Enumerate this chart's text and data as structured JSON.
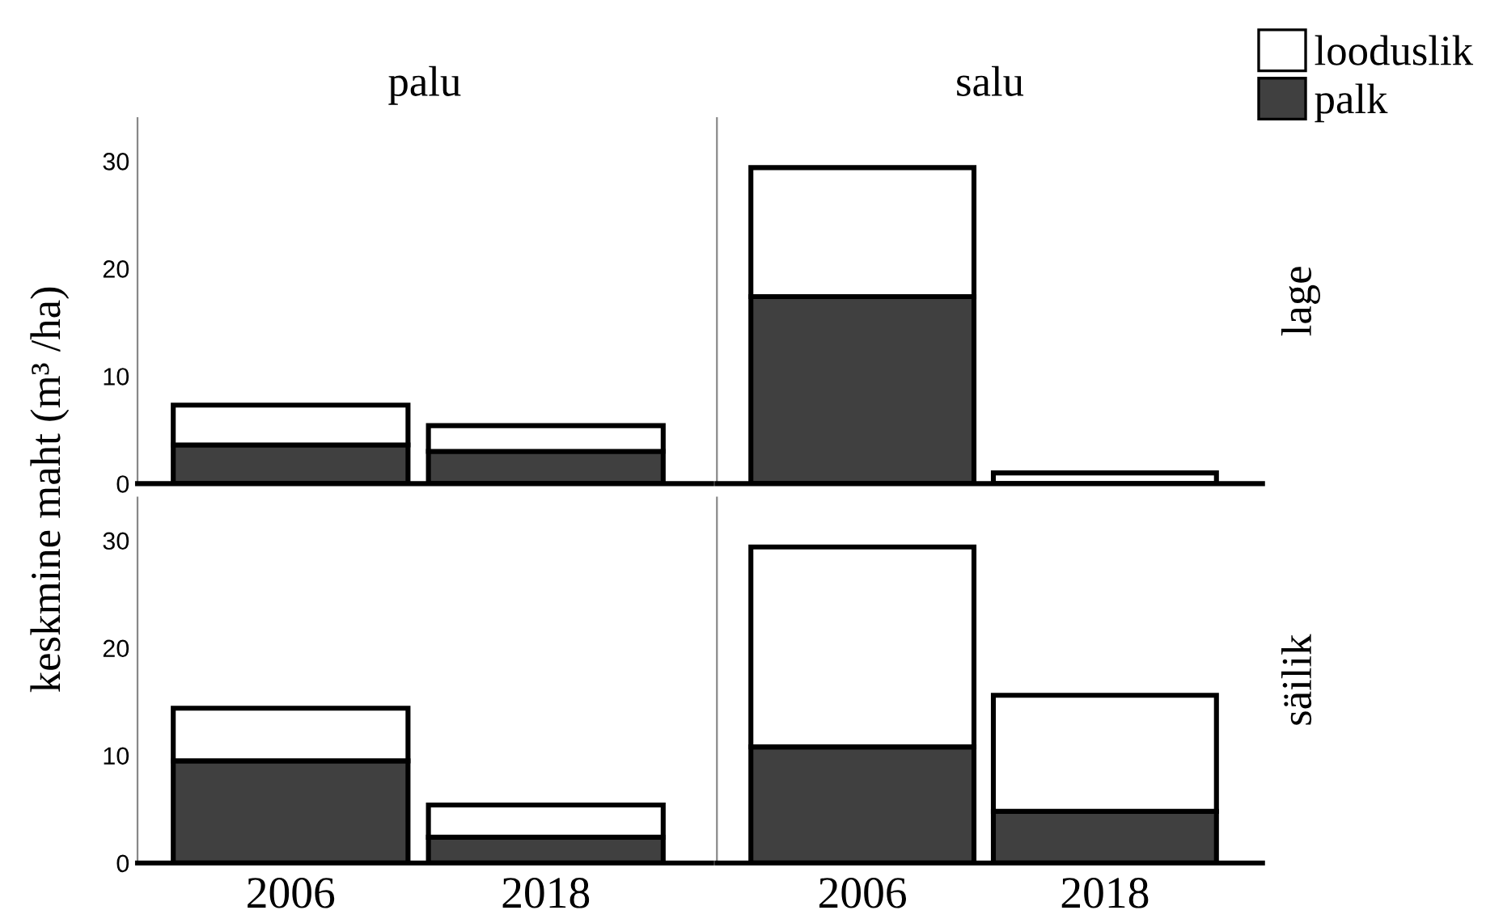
{
  "chart_data": [
    {
      "type": "bar",
      "stacked": true,
      "title": "palu",
      "ylabel": "keskmine maht (m³ /ha)",
      "categories": [
        "2006",
        "2018"
      ],
      "ylim": [
        0,
        34
      ],
      "yticks": [
        0,
        10,
        20,
        30
      ],
      "tick_labels": "y",
      "legend": "top right",
      "series": [
        {
          "name": "palk",
          "color": "#404040",
          "values": [
            3.6,
            3.0
          ]
        },
        {
          "name": "looduslik",
          "color": "#ffffff",
          "values": [
            3.7,
            2.4
          ]
        }
      ]
    },
    {
      "type": "bar",
      "stacked": true,
      "title": "salu",
      "y2label": "lage",
      "categories": [
        "2006",
        "2018"
      ],
      "ylim": [
        0,
        34
      ],
      "yticks": [
        0,
        10,
        20,
        30
      ],
      "tick_labels": false,
      "series": [
        {
          "color": "#404040",
          "values": [
            17.4,
            0
          ]
        },
        {
          "color": "#ffffff",
          "values": [
            12.0,
            1.0
          ]
        }
      ]
    },
    {
      "type": "bar",
      "stacked": true,
      "categories": [
        "2006",
        "2018"
      ],
      "ylim": [
        0,
        34
      ],
      "yticks": [
        0,
        10,
        20,
        30
      ],
      "series": [
        {
          "color": "#404040",
          "values": [
            9.5,
            2.4
          ]
        },
        {
          "color": "#ffffff",
          "values": [
            4.9,
            3.0
          ]
        }
      ]
    },
    {
      "type": "bar",
      "stacked": true,
      "y2label": "säilik",
      "categories": [
        "2006",
        "2018"
      ],
      "ylim": [
        0,
        34
      ],
      "yticks": [
        0,
        10,
        20,
        30
      ],
      "tick_labels": "x",
      "series": [
        {
          "color": "#404040",
          "values": [
            10.8,
            4.8
          ]
        },
        {
          "color": "#ffffff",
          "values": [
            18.6,
            10.8
          ]
        }
      ]
    }
  ]
}
